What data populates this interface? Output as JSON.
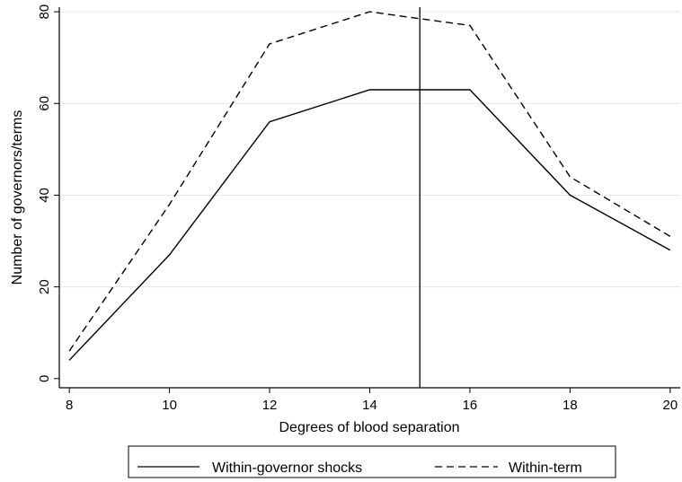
{
  "chart_data": {
    "type": "line",
    "title": "",
    "xlabel": "Degrees of blood separation",
    "ylabel": "Number of governors/terms",
    "x": [
      8,
      10,
      12,
      14,
      16,
      18,
      20
    ],
    "xlim": [
      7.8,
      20.2
    ],
    "ylim": [
      -2,
      81
    ],
    "xticks": [
      8,
      10,
      12,
      14,
      16,
      18,
      20
    ],
    "yticks": [
      0,
      20,
      40,
      60,
      80
    ],
    "grid": "horizontal",
    "vline": 15,
    "legend_position": "bottom",
    "series": [
      {
        "name": "Within-governor shocks",
        "style": "solid",
        "color": "#000000",
        "points": [
          [
            8,
            4
          ],
          [
            10,
            27
          ],
          [
            12,
            56
          ],
          [
            14,
            63
          ],
          [
            16,
            63
          ],
          [
            18,
            40
          ],
          [
            20,
            28
          ]
        ]
      },
      {
        "name": "Within-term",
        "style": "dashed",
        "color": "#000000",
        "points": [
          [
            8,
            6
          ],
          [
            10,
            38
          ],
          [
            12,
            73
          ],
          [
            14,
            80
          ],
          [
            15,
            78.5
          ],
          [
            16,
            77
          ],
          [
            18,
            44
          ],
          [
            20,
            31
          ]
        ]
      }
    ]
  }
}
